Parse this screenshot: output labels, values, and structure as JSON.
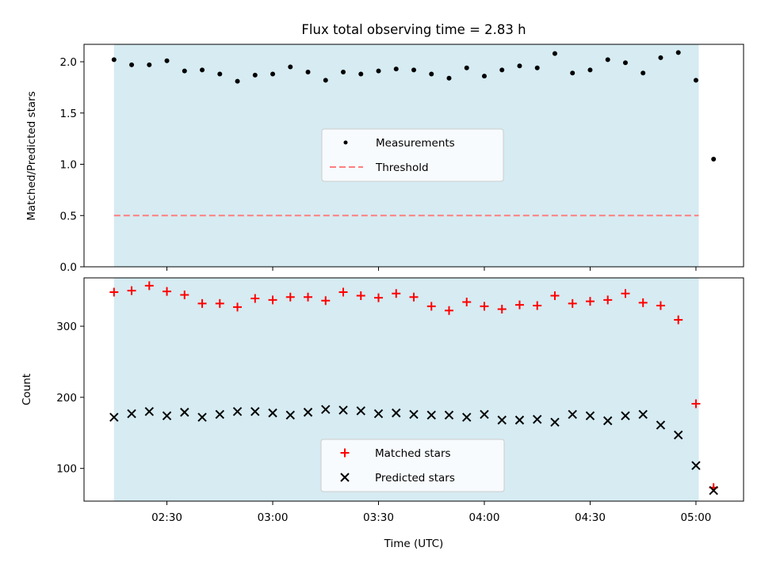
{
  "chart_data": {
    "type": "scatter",
    "title": "Flux total observing time = 2.83 h",
    "xlabel": "Time (UTC)",
    "x_ticks": [
      "02:30",
      "03:00",
      "03:30",
      "04:00",
      "04:30",
      "05:00"
    ],
    "x_tick_minutes": [
      150,
      180,
      210,
      240,
      270,
      300
    ],
    "xlim_minutes": [
      126.5,
      313.5
    ],
    "shaded_interval_minutes": [
      135,
      300.8
    ],
    "colors": {
      "shade": "#add8e6",
      "measurements": "#000000",
      "threshold": "#ff7f7f",
      "matched": "#ff0000",
      "predicted": "#000000"
    },
    "panels": [
      {
        "ylabel": "Matched/Predicted stars",
        "ylim": [
          0,
          2.17
        ],
        "yticks": [
          0.0,
          0.5,
          1.0,
          1.5,
          2.0
        ],
        "ytick_labels": [
          "0.0",
          "0.5",
          "1.0",
          "1.5",
          "2.0"
        ],
        "legend": {
          "position": "center",
          "entries": [
            "Measurements",
            "Threshold"
          ]
        },
        "threshold": 0.5,
        "series": [
          {
            "name": "Measurements",
            "marker": "dot",
            "x_minutes": [
              135,
              140,
              145,
              150,
              155,
              160,
              165,
              170,
              175,
              180,
              185,
              190,
              195,
              200,
              205,
              210,
              215,
              220,
              225,
              230,
              235,
              240,
              245,
              250,
              255,
              260,
              265,
              270,
              275,
              280,
              285,
              290,
              295,
              300
            ],
            "values": [
              2.02,
              1.97,
              1.97,
              2.01,
              1.91,
              1.92,
              1.88,
              1.81,
              1.87,
              1.88,
              1.95,
              1.9,
              1.82,
              1.9,
              1.88,
              1.91,
              1.93,
              1.92,
              1.88,
              1.84,
              1.94,
              1.86,
              1.92,
              1.96,
              1.94,
              2.08,
              1.89,
              1.92,
              2.02,
              1.99,
              1.89,
              2.04,
              2.09,
              1.82
            ]
          },
          {
            "name": "",
            "marker": "dot",
            "x_minutes": [
              305
            ],
            "values": [
              1.05
            ]
          }
        ]
      },
      {
        "ylabel": "Count",
        "ylim": [
          54,
          368
        ],
        "yticks": [
          100,
          200,
          300
        ],
        "ytick_labels": [
          "100",
          "200",
          "300"
        ],
        "legend": {
          "position": "lower center",
          "entries": [
            "Matched stars",
            "Predicted stars"
          ]
        },
        "series": [
          {
            "name": "Matched stars",
            "marker": "plus",
            "x_minutes": [
              135,
              140,
              145,
              150,
              155,
              160,
              165,
              170,
              175,
              180,
              185,
              190,
              195,
              200,
              205,
              210,
              215,
              220,
              225,
              230,
              235,
              240,
              245,
              250,
              255,
              260,
              265,
              270,
              275,
              280,
              285,
              290,
              295,
              300,
              305
            ],
            "values": [
              348,
              350,
              357,
              349,
              344,
              332,
              332,
              327,
              339,
              337,
              341,
              341,
              336,
              348,
              343,
              340,
              346,
              341,
              328,
              322,
              334,
              328,
              324,
              330,
              329,
              343,
              332,
              335,
              337,
              346,
              333,
              329,
              309,
              191,
              73
            ]
          },
          {
            "name": "Predicted stars",
            "marker": "x",
            "x_minutes": [
              135,
              140,
              145,
              150,
              155,
              160,
              165,
              170,
              175,
              180,
              185,
              190,
              195,
              200,
              205,
              210,
              215,
              220,
              225,
              230,
              235,
              240,
              245,
              250,
              255,
              260,
              265,
              270,
              275,
              280,
              285,
              290,
              295,
              300,
              305
            ],
            "values": [
              172,
              177,
              180,
              174,
              179,
              172,
              176,
              180,
              180,
              178,
              175,
              179,
              183,
              182,
              181,
              177,
              178,
              176,
              175,
              175,
              172,
              176,
              168,
              168,
              169,
              165,
              176,
              174,
              167,
              174,
              176,
              161,
              147,
              104,
              69
            ]
          }
        ]
      }
    ]
  }
}
